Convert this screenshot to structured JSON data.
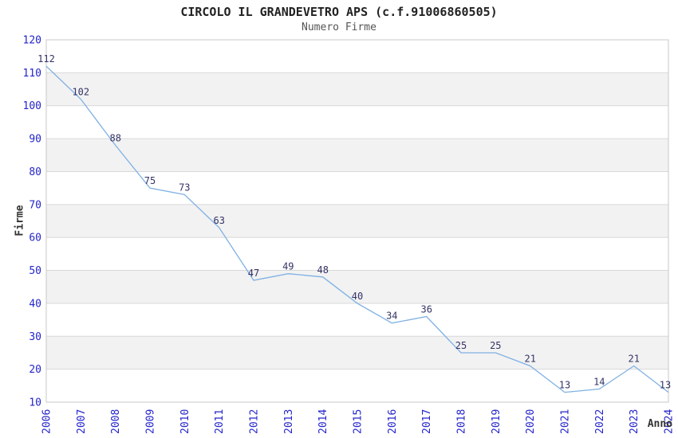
{
  "title": "CIRCOLO IL GRANDEVETRO APS (c.f.91006860505)",
  "subtitle": "Numero Firme",
  "chart_data": {
    "type": "line",
    "title": "CIRCOLO IL GRANDEVETRO APS (c.f.91006860505)",
    "subtitle": "Numero Firme",
    "xlabel": "Anno",
    "ylabel": "Firme",
    "x": [
      2006,
      2007,
      2008,
      2009,
      2010,
      2011,
      2012,
      2013,
      2014,
      2015,
      2016,
      2017,
      2018,
      2019,
      2020,
      2021,
      2022,
      2023,
      2024
    ],
    "series": [
      {
        "name": "Numero Firme",
        "values": [
          112,
          102,
          88,
          75,
          73,
          63,
          47,
          49,
          48,
          40,
          34,
          36,
          25,
          25,
          21,
          13,
          14,
          21,
          13
        ]
      }
    ],
    "ylim": [
      10,
      120
    ],
    "ytick_step": 10,
    "grid": true,
    "band_fill": "alternating",
    "legend": "none",
    "colors": {
      "line": "#7fb0e4",
      "tick_label": "#2424cc",
      "value_label": "#333366",
      "grid_line": "#d8d8d8",
      "band": "#f2f2f2",
      "border": "#c8c8c8",
      "title": "#222222",
      "subtitle": "#555555",
      "axis_title": "#333333"
    }
  }
}
